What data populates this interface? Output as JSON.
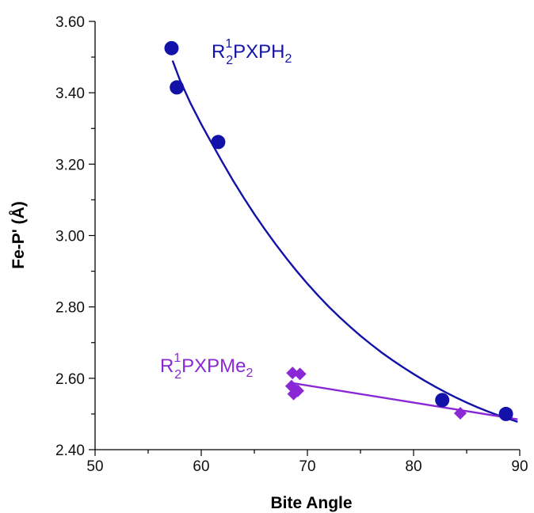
{
  "chart_data": {
    "type": "scatter",
    "title": "",
    "xlabel": "Bite Angle",
    "ylabel": "Fe-P' (Å)",
    "xlim": [
      50,
      90
    ],
    "ylim": [
      2.4,
      3.6
    ],
    "x_ticks": [
      50,
      60,
      70,
      80,
      90
    ],
    "y_ticks": [
      2.4,
      2.6,
      2.8,
      3.0,
      3.2,
      3.4,
      3.6
    ],
    "x_tick_labels": [
      "50",
      "60",
      "70",
      "80",
      "90"
    ],
    "y_tick_labels": [
      "2.40",
      "2.60",
      "2.80",
      "3.00",
      "3.20",
      "3.40",
      "3.60"
    ],
    "grid": false,
    "legend": "none",
    "series": [
      {
        "name": "R¹₂PXPH₂",
        "marker": "circle",
        "color": "#1212a8",
        "points": [
          {
            "x": 57.2,
            "y": 3.525
          },
          {
            "x": 57.7,
            "y": 3.415
          },
          {
            "x": 61.6,
            "y": 3.262
          },
          {
            "x": 82.7,
            "y": 2.539
          },
          {
            "x": 88.7,
            "y": 2.5
          }
        ],
        "fit": "exponential-decay",
        "fit_curve": [
          {
            "x": 57.3,
            "y": 3.49
          },
          {
            "x": 58,
            "y": 3.435
          },
          {
            "x": 59,
            "y": 3.37
          },
          {
            "x": 60,
            "y": 3.312
          },
          {
            "x": 61,
            "y": 3.258
          },
          {
            "x": 62,
            "y": 3.205
          },
          {
            "x": 63,
            "y": 3.154
          },
          {
            "x": 64,
            "y": 3.106
          },
          {
            "x": 65,
            "y": 3.06
          },
          {
            "x": 66,
            "y": 3.017
          },
          {
            "x": 67,
            "y": 2.976
          },
          {
            "x": 68,
            "y": 2.937
          },
          {
            "x": 69,
            "y": 2.9
          },
          {
            "x": 70,
            "y": 2.865
          },
          {
            "x": 71,
            "y": 2.832
          },
          {
            "x": 72,
            "y": 2.801
          },
          {
            "x": 73,
            "y": 2.772
          },
          {
            "x": 74,
            "y": 2.745
          },
          {
            "x": 75,
            "y": 2.719
          },
          {
            "x": 76,
            "y": 2.695
          },
          {
            "x": 77,
            "y": 2.672
          },
          {
            "x": 78,
            "y": 2.651
          },
          {
            "x": 79,
            "y": 2.631
          },
          {
            "x": 80,
            "y": 2.612
          },
          {
            "x": 81,
            "y": 2.594
          },
          {
            "x": 82,
            "y": 2.577
          },
          {
            "x": 83,
            "y": 2.561
          },
          {
            "x": 84,
            "y": 2.546
          },
          {
            "x": 85,
            "y": 2.532
          },
          {
            "x": 86,
            "y": 2.519
          },
          {
            "x": 87,
            "y": 2.507
          },
          {
            "x": 88,
            "y": 2.496
          },
          {
            "x": 89,
            "y": 2.486
          },
          {
            "x": 89.8,
            "y": 2.478
          }
        ]
      },
      {
        "name": "R¹₂PXPMe₂",
        "marker": "diamond",
        "color": "#8a28d6",
        "points": [
          {
            "x": 68.6,
            "y": 2.615
          },
          {
            "x": 69.3,
            "y": 2.612
          },
          {
            "x": 68.5,
            "y": 2.578
          },
          {
            "x": 69.1,
            "y": 2.565
          },
          {
            "x": 68.7,
            "y": 2.556
          },
          {
            "x": 84.4,
            "y": 2.502
          }
        ],
        "fit": "linear",
        "fit_line": [
          {
            "x": 68.5,
            "y": 2.587
          },
          {
            "x": 89.8,
            "y": 2.485
          }
        ]
      }
    ],
    "annotations": [
      {
        "text_base": "R",
        "sup": "1",
        "sub": "2",
        "text_mid": "PXPH",
        "sub2": "2",
        "color": "#1212a8"
      },
      {
        "text_base": "R",
        "sup": "1",
        "sub": "2",
        "text_mid": "PXPMe",
        "sub2": "2",
        "color": "#8a28d6"
      }
    ]
  }
}
